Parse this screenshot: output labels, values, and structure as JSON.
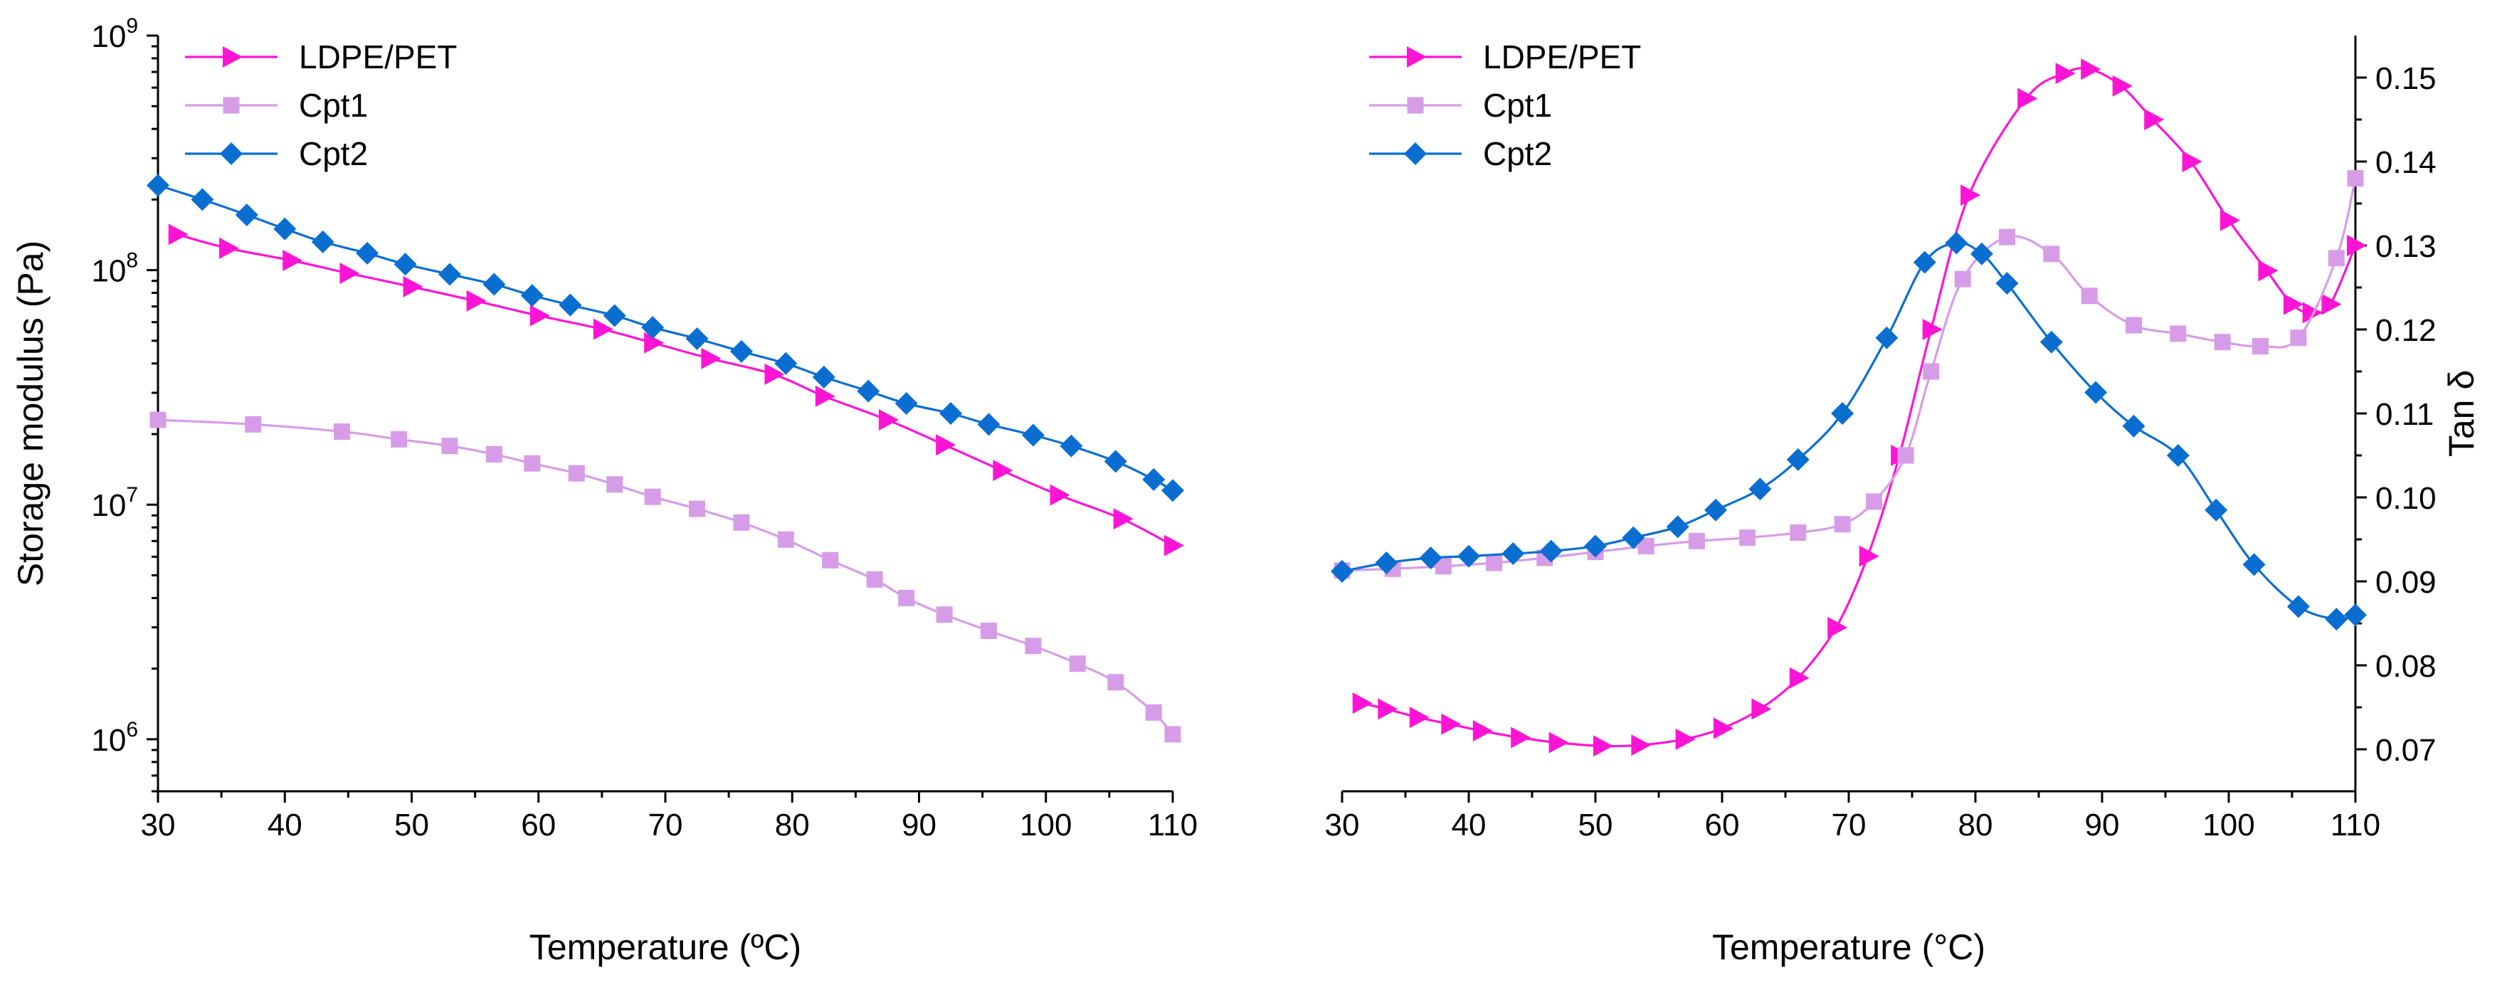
{
  "colors": {
    "ldpe_pet": "#ff14d6",
    "cpt1": "#d79ce8",
    "cpt2": "#0a6ed1"
  },
  "chart_data": [
    {
      "type": "line",
      "xlabel": "Temperature (ºC)",
      "ylabel": "Storage modulus (Pa)",
      "xlim": [
        30,
        110
      ],
      "ylim": [
        600000,
        1000000000
      ],
      "yscale": "log",
      "xticks": [
        "30",
        "40",
        "50",
        "60",
        "70",
        "80",
        "90",
        "100",
        "110"
      ],
      "ytick_powers": [
        6,
        7,
        8,
        9
      ],
      "ytick_base": "10",
      "legend_placement": "top-left",
      "series": [
        {
          "name": "LDPE/PET",
          "marker": "triangle-right",
          "color": "#ff14d6",
          "x": [
            31.5,
            35.5,
            40.5,
            45,
            50,
            55,
            60,
            65,
            69,
            73.5,
            78.5,
            82.5,
            87.5,
            92,
            96.5,
            101,
            106,
            110
          ],
          "y": [
            142000000,
            124000000,
            110000000,
            97000000,
            85000000,
            74000000,
            64000000,
            56000000,
            49000000,
            42000000,
            36000000,
            29000000,
            23000000,
            18000000,
            14000000,
            11000000,
            8700000,
            6700000
          ]
        },
        {
          "name": "Cpt1",
          "marker": "square",
          "color": "#d79ce8",
          "x": [
            30,
            37.5,
            44.5,
            49,
            53,
            56.5,
            59.5,
            63,
            66,
            69,
            72.5,
            76,
            79.5,
            83,
            86.5,
            89,
            92,
            95.5,
            99,
            102.5,
            105.5,
            108.5,
            110
          ],
          "y": [
            23000000,
            22000000,
            20500000,
            19000000,
            17800000,
            16400000,
            15000000,
            13600000,
            12200000,
            10800000,
            9600000,
            8400000,
            7100000,
            5800000,
            4800000,
            4000000,
            3400000,
            2900000,
            2500000,
            2100000,
            1750000,
            1300000,
            1050000
          ]
        },
        {
          "name": "Cpt2",
          "marker": "diamond",
          "color": "#0a6ed1",
          "x": [
            30,
            33.5,
            37,
            40,
            43,
            46.5,
            49.5,
            53,
            56.5,
            59.5,
            62.5,
            66,
            69,
            72.5,
            76,
            79.5,
            82.5,
            86,
            89,
            92.5,
            95.5,
            99,
            102,
            105.5,
            108.5,
            110
          ],
          "y": [
            230000000,
            200000000,
            172000000,
            150000000,
            132000000,
            118000000,
            106000000,
            96000000,
            87000000,
            78000000,
            71000000,
            64000000,
            57000000,
            51000000,
            45000000,
            40000000,
            35000000,
            30500000,
            27000000,
            24500000,
            22000000,
            19800000,
            17800000,
            15300000,
            12800000,
            11500000
          ]
        }
      ]
    },
    {
      "type": "line",
      "xlabel": "Temperature (°C)",
      "ylabel": "Tan δ",
      "xlim": [
        30,
        110
      ],
      "ylim": [
        0.065,
        0.155
      ],
      "xticks": [
        "30",
        "40",
        "50",
        "60",
        "70",
        "80",
        "90",
        "100",
        "110"
      ],
      "yticks": [
        "0.07",
        "0.08",
        "0.09",
        "0.10",
        "0.11",
        "0.12",
        "0.13",
        "0.14",
        "0.15"
      ],
      "legend_placement": "top-left",
      "series": [
        {
          "name": "LDPE/PET",
          "marker": "triangle-right",
          "color": "#ff14d6",
          "x": [
            31.5,
            33.5,
            36,
            38.5,
            41,
            44,
            47,
            50.5,
            53.5,
            57,
            60,
            63,
            66,
            69,
            71.5,
            74,
            76.5,
            79.5,
            84,
            87,
            89,
            91.5,
            94,
            97,
            100,
            103,
            105,
            106.5,
            108,
            110
          ],
          "y": [
            0.0755,
            0.0748,
            0.0738,
            0.073,
            0.0722,
            0.0714,
            0.0708,
            0.0704,
            0.0705,
            0.0712,
            0.0725,
            0.0748,
            0.0785,
            0.0845,
            0.093,
            0.105,
            0.12,
            0.136,
            0.1475,
            0.1505,
            0.151,
            0.149,
            0.145,
            0.14,
            0.133,
            0.127,
            0.123,
            0.122,
            0.123,
            0.13
          ]
        },
        {
          "name": "Cpt1",
          "marker": "square",
          "color": "#d79ce8",
          "x": [
            30,
            34,
            38,
            42,
            46,
            50,
            54,
            58,
            62,
            66,
            69.5,
            72,
            74.5,
            76.5,
            79,
            82.5,
            86,
            89,
            92.5,
            96,
            99.5,
            102.5,
            105.5,
            108.5,
            110
          ],
          "y": [
            0.0913,
            0.0915,
            0.0918,
            0.0922,
            0.0928,
            0.0935,
            0.0942,
            0.0948,
            0.0952,
            0.0958,
            0.0968,
            0.0995,
            0.105,
            0.115,
            0.126,
            0.131,
            0.129,
            0.124,
            0.1205,
            0.1195,
            0.1185,
            0.118,
            0.119,
            0.1285,
            0.138
          ]
        },
        {
          "name": "Cpt2",
          "marker": "diamond",
          "color": "#0a6ed1",
          "x": [
            30,
            33.5,
            37,
            40,
            43.5,
            46.5,
            50,
            53,
            56.5,
            59.5,
            63,
            66,
            69.5,
            73,
            76,
            78.5,
            80.5,
            82.5,
            86,
            89.5,
            92.5,
            96,
            99,
            102,
            105.5,
            108.5,
            110
          ],
          "y": [
            0.0912,
            0.0922,
            0.0928,
            0.093,
            0.0933,
            0.0936,
            0.0942,
            0.0952,
            0.0965,
            0.0985,
            0.101,
            0.1045,
            0.11,
            0.119,
            0.128,
            0.1303,
            0.129,
            0.1255,
            0.1185,
            0.1125,
            0.1085,
            0.105,
            0.0985,
            0.092,
            0.087,
            0.0855,
            0.086
          ]
        }
      ]
    }
  ]
}
